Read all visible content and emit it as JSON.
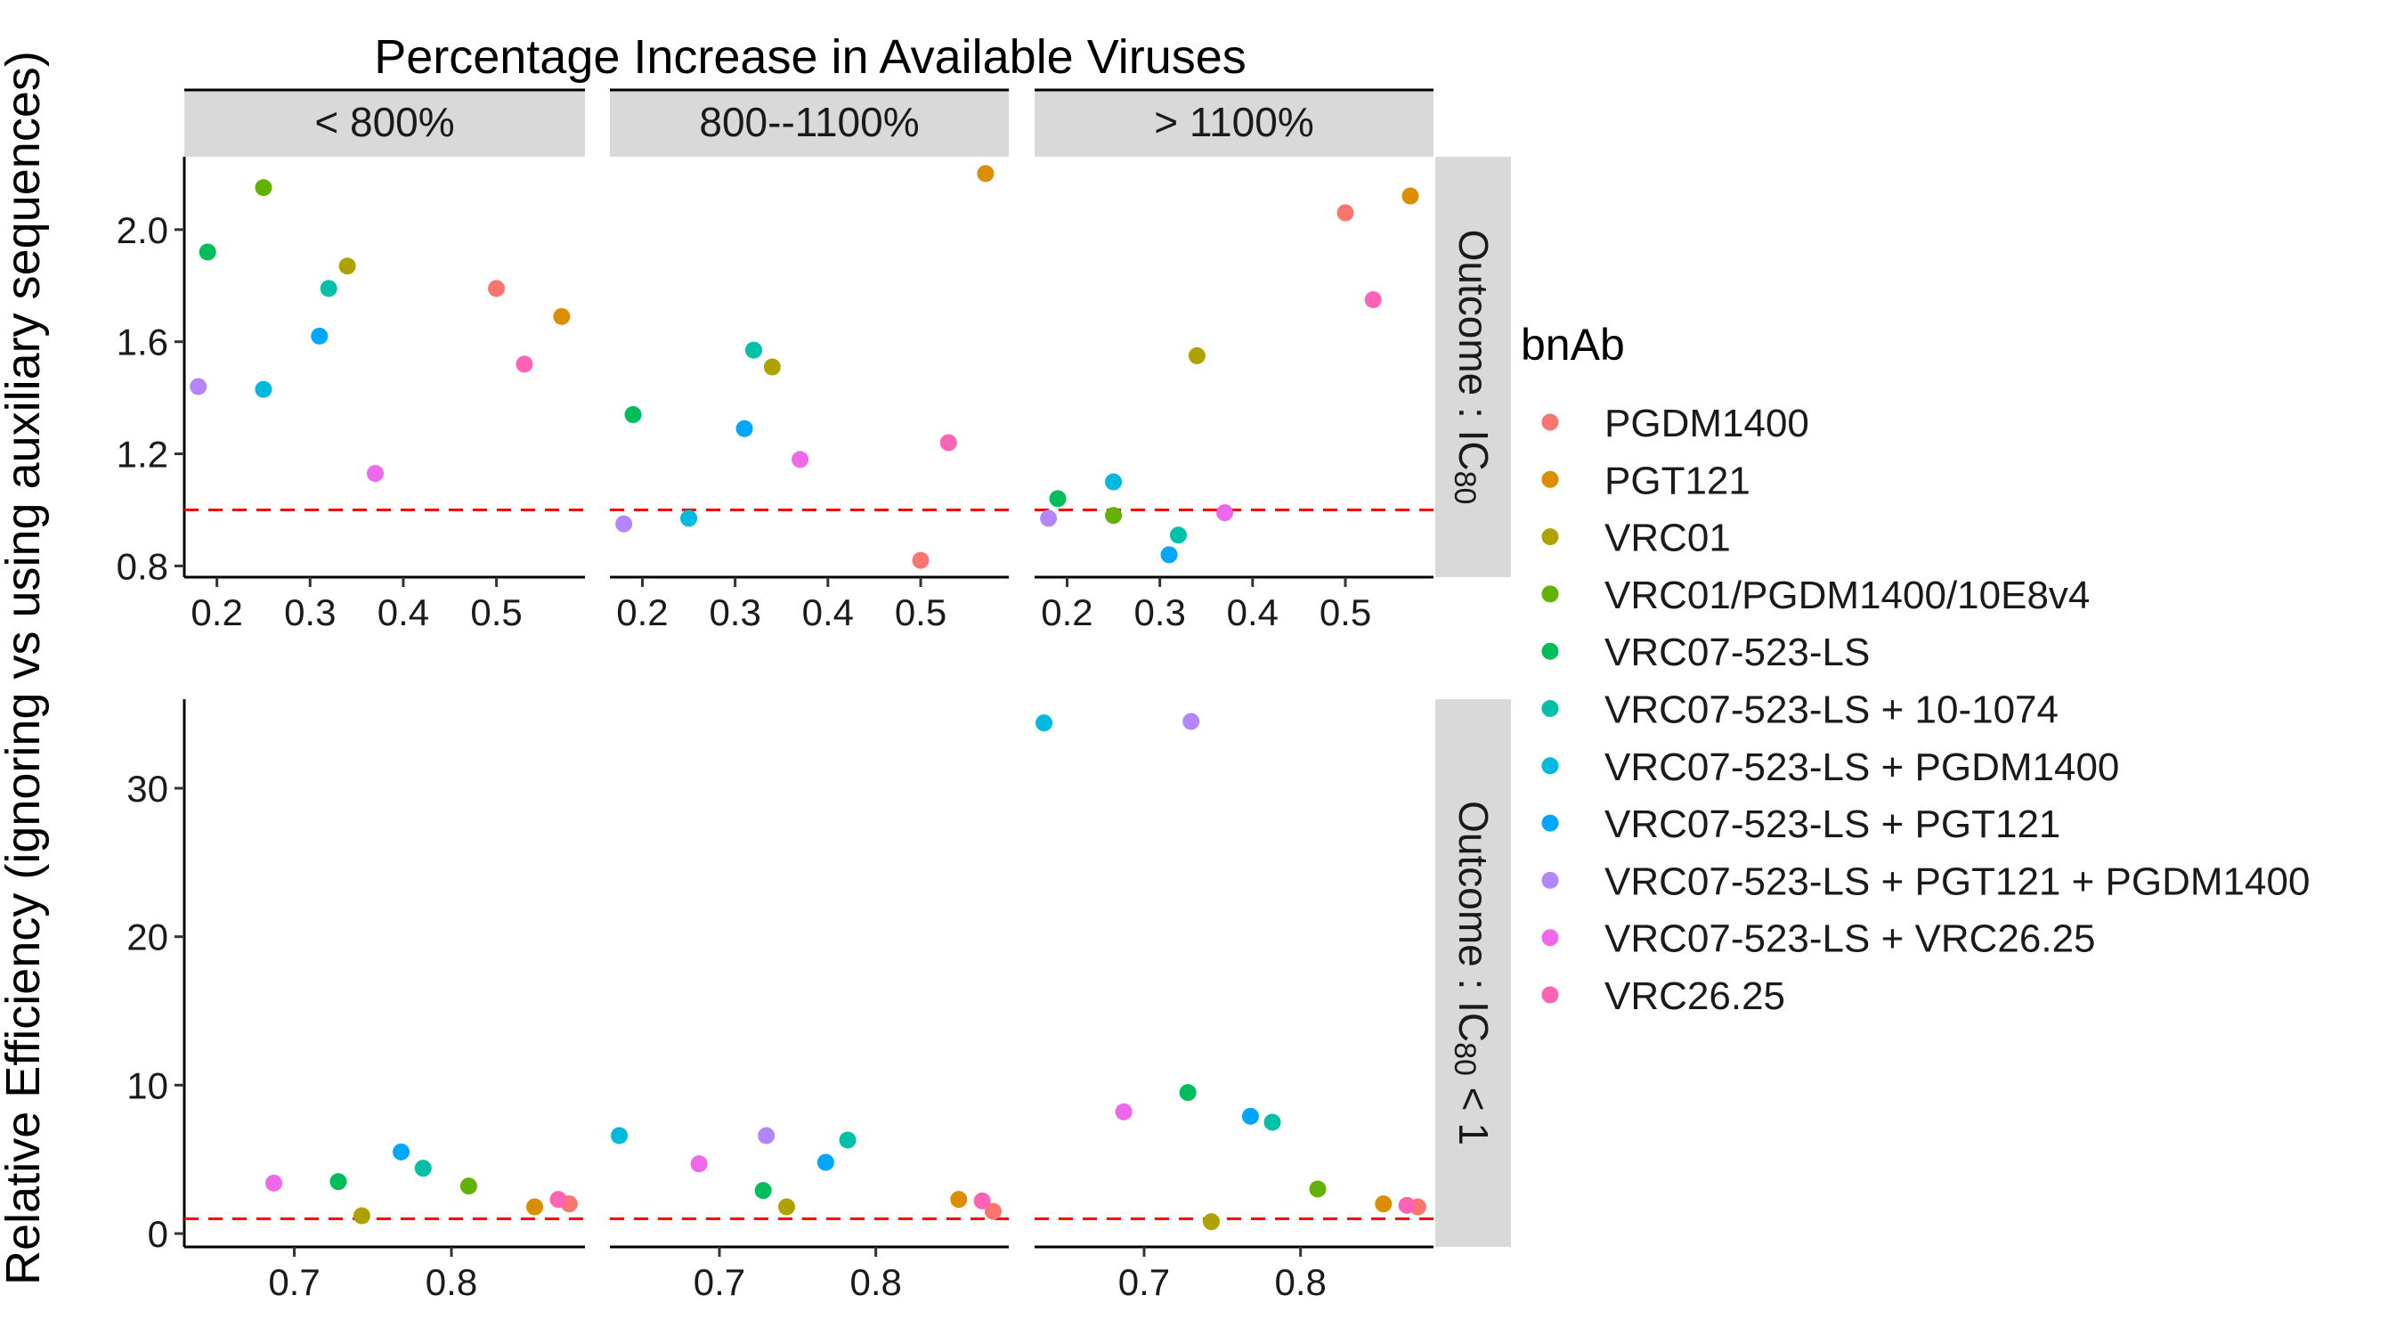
{
  "chart_data": {
    "type": "scatter",
    "top_title": "Percentage Increase in Available Viruses",
    "ylabel": "Relative Efficiency (ignoring vs using auxiliary sequences)",
    "col_strips": [
      "< 800%",
      "800--1100%",
      "> 1100%"
    ],
    "row_strips": [
      {
        "prefix": "Outcome : IC",
        "sub": "80",
        "suffix": ""
      },
      {
        "prefix": "Outcome : IC",
        "sub": "80",
        "suffix": " < 1"
      }
    ],
    "legend_title": "bnAb",
    "reference_line": 1,
    "grid": false,
    "legend_position": "right",
    "series": [
      {
        "name": "PGDM1400",
        "color": "#F8766D"
      },
      {
        "name": "PGT121",
        "color": "#DB8E00"
      },
      {
        "name": "VRC01",
        "color": "#AEA200"
      },
      {
        "name": "VRC01/PGDM1400/10E8v4",
        "color": "#64B200"
      },
      {
        "name": "VRC07-523-LS",
        "color": "#00BD5C"
      },
      {
        "name": "VRC07-523-LS + 10-1074",
        "color": "#00C1A7"
      },
      {
        "name": "VRC07-523-LS + PGDM1400",
        "color": "#00BADE"
      },
      {
        "name": "VRC07-523-LS + PGT121",
        "color": "#00A6FF"
      },
      {
        "name": "VRC07-523-LS + PGT121 + PGDM1400",
        "color": "#B385FF"
      },
      {
        "name": "VRC07-523-LS + VRC26.25",
        "color": "#EF67EB"
      },
      {
        "name": "VRC26.25",
        "color": "#FF63B6"
      }
    ],
    "rows": [
      {
        "xlim": [
          0.165,
          0.595
        ],
        "xticks": [
          0.2,
          0.3,
          0.4,
          0.5
        ],
        "xtick_labels": [
          "0.2",
          "0.3",
          "0.4",
          "0.5"
        ],
        "ylim": [
          0.76,
          2.26
        ],
        "yticks": [
          0.8,
          1.2,
          1.6,
          2.0
        ],
        "ytick_labels": [
          "0.8",
          "1.2",
          "1.6",
          "2.0"
        ],
        "panels": [
          {
            "points": [
              {
                "s": 0,
                "x": 0.5,
                "y": 1.79
              },
              {
                "s": 1,
                "x": 0.57,
                "y": 1.69
              },
              {
                "s": 2,
                "x": 0.34,
                "y": 1.87
              },
              {
                "s": 3,
                "x": 0.25,
                "y": 2.15
              },
              {
                "s": 4,
                "x": 0.19,
                "y": 1.92
              },
              {
                "s": 5,
                "x": 0.32,
                "y": 1.79
              },
              {
                "s": 6,
                "x": 0.25,
                "y": 1.43
              },
              {
                "s": 7,
                "x": 0.31,
                "y": 1.62
              },
              {
                "s": 8,
                "x": 0.18,
                "y": 1.44
              },
              {
                "s": 9,
                "x": 0.37,
                "y": 1.13
              },
              {
                "s": 10,
                "x": 0.53,
                "y": 1.52
              }
            ]
          },
          {
            "points": [
              {
                "s": 0,
                "x": 0.5,
                "y": 0.82
              },
              {
                "s": 1,
                "x": 0.57,
                "y": 2.2
              },
              {
                "s": 2,
                "x": 0.34,
                "y": 1.51
              },
              {
                "s": 4,
                "x": 0.19,
                "y": 1.34
              },
              {
                "s": 5,
                "x": 0.32,
                "y": 1.57
              },
              {
                "s": 6,
                "x": 0.25,
                "y": 0.97
              },
              {
                "s": 7,
                "x": 0.31,
                "y": 1.29
              },
              {
                "s": 8,
                "x": 0.18,
                "y": 0.95
              },
              {
                "s": 9,
                "x": 0.37,
                "y": 1.18
              },
              {
                "s": 10,
                "x": 0.53,
                "y": 1.24
              }
            ]
          },
          {
            "points": [
              {
                "s": 0,
                "x": 0.5,
                "y": 2.06
              },
              {
                "s": 1,
                "x": 0.57,
                "y": 2.12
              },
              {
                "s": 2,
                "x": 0.34,
                "y": 1.55
              },
              {
                "s": 3,
                "x": 0.25,
                "y": 0.98
              },
              {
                "s": 4,
                "x": 0.19,
                "y": 1.04
              },
              {
                "s": 5,
                "x": 0.32,
                "y": 0.91
              },
              {
                "s": 6,
                "x": 0.25,
                "y": 1.1
              },
              {
                "s": 7,
                "x": 0.31,
                "y": 0.84
              },
              {
                "s": 8,
                "x": 0.18,
                "y": 0.97
              },
              {
                "s": 9,
                "x": 0.37,
                "y": 0.99
              },
              {
                "s": 10,
                "x": 0.53,
                "y": 1.75
              }
            ]
          }
        ]
      },
      {
        "xlim": [
          0.63,
          0.885
        ],
        "xticks": [
          0.7,
          0.8
        ],
        "xtick_labels": [
          "0.7",
          "0.8"
        ],
        "ylim": [
          -0.9,
          36.0
        ],
        "yticks": [
          0,
          10,
          20,
          30
        ],
        "ytick_labels": [
          "0",
          "10",
          "20",
          "30"
        ],
        "panels": [
          {
            "points": [
              {
                "s": 0,
                "x": 0.875,
                "y": 2.0
              },
              {
                "s": 1,
                "x": 0.853,
                "y": 1.8
              },
              {
                "s": 2,
                "x": 0.743,
                "y": 1.2
              },
              {
                "s": 3,
                "x": 0.811,
                "y": 3.2
              },
              {
                "s": 4,
                "x": 0.728,
                "y": 3.5
              },
              {
                "s": 5,
                "x": 0.782,
                "y": 4.4
              },
              {
                "s": 7,
                "x": 0.768,
                "y": 5.5
              },
              {
                "s": 9,
                "x": 0.687,
                "y": 3.4
              },
              {
                "s": 10,
                "x": 0.868,
                "y": 2.3
              }
            ]
          },
          {
            "points": [
              {
                "s": 0,
                "x": 0.875,
                "y": 1.5
              },
              {
                "s": 1,
                "x": 0.853,
                "y": 2.3
              },
              {
                "s": 2,
                "x": 0.743,
                "y": 1.8
              },
              {
                "s": 4,
                "x": 0.728,
                "y": 2.9
              },
              {
                "s": 5,
                "x": 0.782,
                "y": 6.3
              },
              {
                "s": 6,
                "x": 0.636,
                "y": 6.6
              },
              {
                "s": 7,
                "x": 0.768,
                "y": 4.8
              },
              {
                "s": 8,
                "x": 0.73,
                "y": 6.6
              },
              {
                "s": 9,
                "x": 0.687,
                "y": 4.7
              },
              {
                "s": 10,
                "x": 0.868,
                "y": 2.2
              }
            ]
          },
          {
            "points": [
              {
                "s": 0,
                "x": 0.875,
                "y": 1.8
              },
              {
                "s": 1,
                "x": 0.853,
                "y": 2.0
              },
              {
                "s": 2,
                "x": 0.743,
                "y": 0.8
              },
              {
                "s": 3,
                "x": 0.811,
                "y": 3.0
              },
              {
                "s": 4,
                "x": 0.728,
                "y": 9.5
              },
              {
                "s": 5,
                "x": 0.782,
                "y": 7.5
              },
              {
                "s": 6,
                "x": 0.636,
                "y": 34.4
              },
              {
                "s": 7,
                "x": 0.768,
                "y": 7.9
              },
              {
                "s": 8,
                "x": 0.73,
                "y": 34.5
              },
              {
                "s": 9,
                "x": 0.687,
                "y": 8.2
              },
              {
                "s": 10,
                "x": 0.868,
                "y": 1.9
              }
            ]
          }
        ]
      }
    ]
  }
}
